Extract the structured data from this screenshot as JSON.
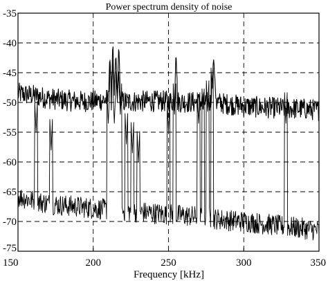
{
  "chart_data": {
    "type": "line",
    "title": "Power spectrum density of noise",
    "xlabel": "Frequency [kHz]",
    "ylabel": "",
    "xlim": [
      150,
      350
    ],
    "ylim": [
      -75,
      -35
    ],
    "x_ticks": [
      "150",
      "200",
      "250",
      "300",
      "350"
    ],
    "y_ticks": [
      "-35",
      "-40",
      "-45",
      "-50",
      "-55",
      "-60",
      "-65",
      "-70",
      "-75"
    ],
    "grid": true,
    "legend": "none",
    "series": [
      {
        "line_color": "#000000",
        "line_width": 1.1,
        "description_level": "upper noisy trace",
        "baseline": -49.5,
        "jitter": 1.8,
        "x": [
          150,
          160,
          170,
          180,
          190,
          200,
          210,
          211,
          212,
          213,
          214,
          215,
          216,
          217,
          218,
          219,
          220,
          230,
          240,
          253,
          254,
          255,
          256,
          257,
          270,
          278,
          279,
          280,
          281,
          282,
          290,
          300,
          310,
          320,
          330,
          340,
          350
        ],
        "values": [
          -48.5,
          -48.8,
          -49.3,
          -49.6,
          -49.8,
          -49.8,
          -49.5,
          -42,
          -49.6,
          -39.5,
          -49.6,
          -41.5,
          -49.5,
          -39.8,
          -49.6,
          -49.8,
          -49.9,
          -49.8,
          -49.8,
          -49.8,
          -49.8,
          -41,
          -49.8,
          -49.9,
          -50.0,
          -50.0,
          -46,
          -42.7,
          -47,
          -50.0,
          -50.3,
          -50.6,
          -50.8,
          -50.9,
          -51.0,
          -51.1,
          -51.3
        ]
      },
      {
        "line_color": "#000000",
        "line_width": 0.9,
        "description_level": "lower noisy trace",
        "baseline": -69,
        "jitter": 1.8,
        "peaks": [
          {
            "x": 162,
            "y": -55
          },
          {
            "x": 172,
            "y": -58
          },
          {
            "x": 210,
            "y": -53.5
          },
          {
            "x": 212,
            "y": -48
          },
          {
            "x": 214,
            "y": -53.5
          },
          {
            "x": 216,
            "y": -50
          },
          {
            "x": 218,
            "y": -52
          },
          {
            "x": 222,
            "y": -57
          },
          {
            "x": 226,
            "y": -58.5
          },
          {
            "x": 230,
            "y": -60
          },
          {
            "x": 250,
            "y": -55
          },
          {
            "x": 254,
            "y": -52
          },
          {
            "x": 270,
            "y": -53.5
          },
          {
            "x": 273,
            "y": -52
          },
          {
            "x": 276,
            "y": -51.5
          },
          {
            "x": 279,
            "y": -48.5
          },
          {
            "x": 328,
            "y": -53.5
          }
        ],
        "x": [
          150,
          160,
          170,
          180,
          190,
          200,
          210,
          220,
          230,
          240,
          250,
          260,
          270,
          280,
          290,
          300,
          310,
          320,
          330,
          340,
          350
        ],
        "values": [
          -65.8,
          -66.5,
          -67.0,
          -67.3,
          -67.5,
          -67.8,
          -68.0,
          -68.2,
          -68.4,
          -68.6,
          -68.8,
          -69.0,
          -69.2,
          -69.5,
          -69.8,
          -70.0,
          -70.3,
          -70.6,
          -70.9,
          -71.2,
          -71.5
        ]
      }
    ]
  }
}
